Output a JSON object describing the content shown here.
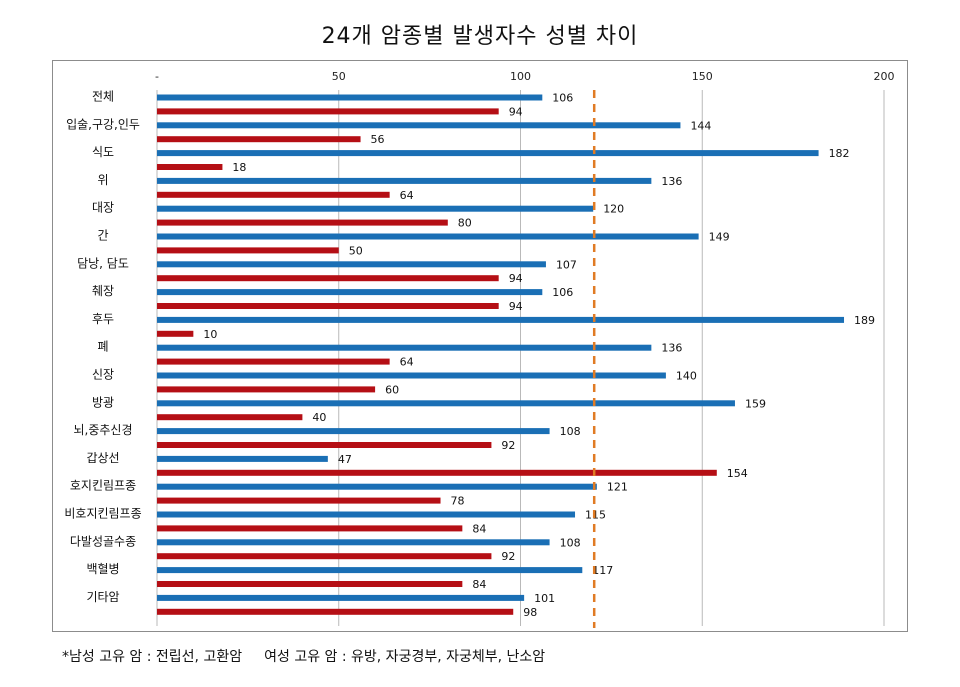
{
  "title": "24개 암종별 발생자수 성별 차이",
  "footnote": {
    "male": "*남성 고유 암 : 전립선, 고환암",
    "female": "여성 고유 암 : 유방, 자궁경부, 자궁체부, 난소암"
  },
  "chart_data": {
    "type": "bar",
    "orientation": "horizontal",
    "title": "24개 암종별 발생자수 성별 차이",
    "xlim": [
      0,
      200
    ],
    "x_ticks": [
      {
        "value": 0,
        "label": "-"
      },
      {
        "value": 50,
        "label": "50"
      },
      {
        "value": 100,
        "label": "100"
      },
      {
        "value": 150,
        "label": "150"
      },
      {
        "value": 200,
        "label": "200"
      }
    ],
    "x_axis_position": "top",
    "grid": "vertical",
    "reference_line": {
      "value": 120,
      "style": "dashed",
      "color": "#e07b24"
    },
    "categories": [
      "전체",
      "입술,구강,인두",
      "식도",
      "위",
      "대장",
      "간",
      "담낭, 담도",
      "췌장",
      "후두",
      "폐",
      "신장",
      "방광",
      "뇌,중추신경",
      "갑상선",
      "호지킨림프종",
      "비호지킨림프종",
      "다발성골수종",
      "백혈병",
      "기타암"
    ],
    "series": [
      {
        "color": "#1a6fb5",
        "values": [
          106,
          144,
          182,
          136,
          120,
          149,
          107,
          106,
          189,
          136,
          140,
          159,
          108,
          47,
          121,
          115,
          108,
          117,
          101
        ]
      },
      {
        "color": "#b50f15",
        "values": [
          94,
          56,
          18,
          64,
          80,
          50,
          94,
          94,
          10,
          64,
          60,
          40,
          92,
          154,
          78,
          84,
          92,
          84,
          98
        ]
      }
    ]
  }
}
